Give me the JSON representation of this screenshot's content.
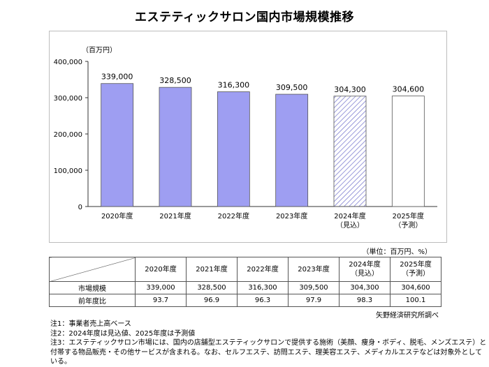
{
  "title": "エステティックサロン国内市場規模推移",
  "chart_data": {
    "type": "bar",
    "unit_label": "（百万円）",
    "categories": [
      [
        "2020年度"
      ],
      [
        "2021年度"
      ],
      [
        "2022年度"
      ],
      [
        "2023年度"
      ],
      [
        "2024年度",
        "（見込）"
      ],
      [
        "2025年度",
        "（予測）"
      ]
    ],
    "values": [
      339000,
      328500,
      316300,
      309500,
      304300,
      304600
    ],
    "value_labels": [
      "339,000",
      "328,500",
      "316,300",
      "309,500",
      "304,300",
      "304,600"
    ],
    "bar_styles": [
      "solid",
      "solid",
      "solid",
      "solid",
      "hatched",
      "outline"
    ],
    "ylim": [
      0,
      400000
    ],
    "yticks": [
      0,
      100000,
      200000,
      300000,
      400000
    ],
    "ytick_labels": [
      "0",
      "100,000",
      "200,000",
      "300,000",
      "400,000"
    ],
    "colors": {
      "bar_fill": "#9e9ef2",
      "bar_stroke": "#555555",
      "hatch": "#8080d0"
    }
  },
  "table": {
    "unit_note": "（単位：百万円、%）",
    "headers": [
      [
        "2020年度"
      ],
      [
        "2021年度"
      ],
      [
        "2022年度"
      ],
      [
        "2023年度"
      ],
      [
        "2024年度",
        "（見込）"
      ],
      [
        "2025年度",
        "（予測）"
      ]
    ],
    "rows": [
      {
        "label": "市場規模",
        "cells": [
          "339,000",
          "328,500",
          "316,300",
          "309,500",
          "304,300",
          "304,600"
        ]
      },
      {
        "label": "前年度比",
        "cells": [
          "93.7",
          "96.9",
          "96.3",
          "97.9",
          "98.3",
          "100.1"
        ]
      }
    ]
  },
  "source": "矢野経済研究所調べ",
  "notes": [
    "注1：事業者売上高ベース",
    "注2：2024年度は見込値、2025年度は予測値",
    "注3：エステティックサロン市場には、国内の店舗型エステティックサロンで提供する施術（美顔、痩身・ボディ、脱毛、メンズエステ）と",
    "付帯する物品販売・その他サービスが含まれる。なお、セルフエステ、訪問エステ、理美容エステ、メディカルエステなどは対象外としている。"
  ]
}
